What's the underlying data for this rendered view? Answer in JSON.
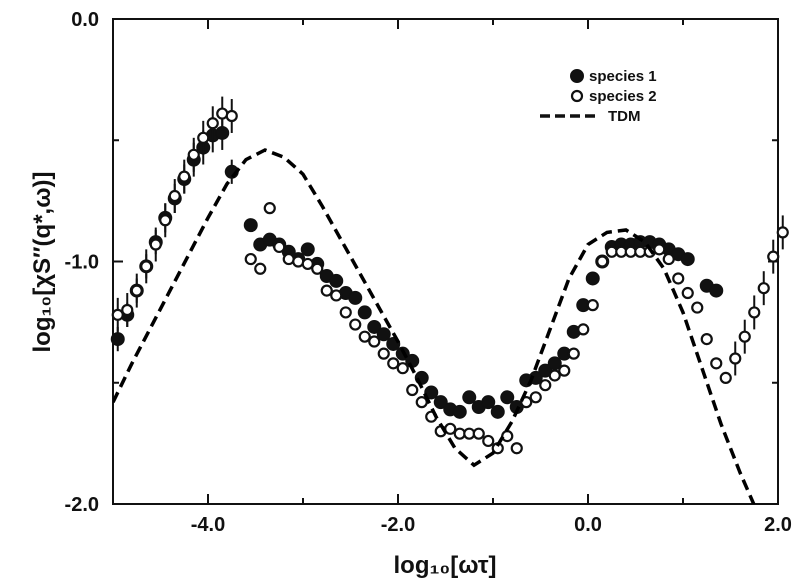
{
  "chart_data": {
    "type": "scatter",
    "title": "",
    "xlabel": "log₁₀[ωτ]",
    "ylabel": "log₁₀[χS″(q*,ω)]",
    "xlim": [
      -5.0,
      2.0
    ],
    "ylim": [
      -2.0,
      0.0
    ],
    "x_ticks": [
      -4.0,
      -2.0,
      0.0,
      2.0
    ],
    "x_tick_labels": [
      "-4.0",
      "-2.0",
      "0.0",
      "2.0"
    ],
    "y_ticks": [
      -2.0,
      -1.0,
      0.0
    ],
    "y_tick_labels": [
      "-2.0",
      "-1.0",
      "0.0"
    ],
    "grid": false,
    "legend_position": "top-right",
    "series": [
      {
        "name": "species 1",
        "marker": "filled-circle",
        "color": "#000000",
        "x": [
          -4.95,
          -4.85,
          -4.75,
          -4.65,
          -4.55,
          -4.45,
          -4.35,
          -4.25,
          -4.15,
          -4.05,
          -3.95,
          -3.85,
          -3.75,
          -3.55,
          -3.45,
          -3.35,
          -3.25,
          -3.15,
          -3.05,
          -2.95,
          -2.85,
          -2.75,
          -2.65,
          -2.55,
          -2.45,
          -2.35,
          -2.25,
          -2.15,
          -2.05,
          -1.95,
          -1.85,
          -1.75,
          -1.65,
          -1.55,
          -1.45,
          -1.35,
          -1.25,
          -1.15,
          -1.05,
          -0.95,
          -0.85,
          -0.75,
          -0.65,
          -0.55,
          -0.45,
          -0.35,
          -0.25,
          -0.15,
          -0.05,
          0.05,
          0.15,
          0.25,
          0.35,
          0.45,
          0.55,
          0.65,
          0.75,
          0.85,
          0.95,
          1.05,
          1.25,
          1.35
        ],
        "y": [
          -1.32,
          -1.22,
          -1.12,
          -1.02,
          -0.92,
          -0.82,
          -0.74,
          -0.66,
          -0.58,
          -0.53,
          -0.48,
          -0.47,
          -0.63,
          -0.85,
          -0.93,
          -0.91,
          -0.93,
          -0.96,
          -0.99,
          -0.95,
          -1.01,
          -1.06,
          -1.08,
          -1.13,
          -1.15,
          -1.21,
          -1.27,
          -1.3,
          -1.34,
          -1.38,
          -1.41,
          -1.48,
          -1.54,
          -1.58,
          -1.61,
          -1.62,
          -1.56,
          -1.6,
          -1.58,
          -1.62,
          -1.56,
          -1.6,
          -1.49,
          -1.48,
          -1.45,
          -1.42,
          -1.38,
          -1.29,
          -1.18,
          -1.07,
          -1.0,
          -0.94,
          -0.93,
          -0.93,
          -0.92,
          -0.92,
          -0.93,
          -0.95,
          -0.97,
          -0.99,
          -1.1,
          -1.12
        ],
        "y_err": [
          0.05,
          0.05,
          0.05,
          0.05,
          0.05,
          0.06,
          0.06,
          0.06,
          0.07,
          0.07,
          0.07,
          0.07,
          0.05,
          0,
          0,
          0,
          0,
          0,
          0,
          0,
          0,
          0,
          0,
          0,
          0,
          0,
          0,
          0,
          0,
          0,
          0,
          0,
          0,
          0,
          0,
          0,
          0,
          0,
          0,
          0,
          0,
          0,
          0,
          0,
          0,
          0,
          0,
          0,
          0,
          0,
          0,
          0,
          0,
          0,
          0,
          0,
          0,
          0,
          0,
          0,
          0,
          0
        ]
      },
      {
        "name": "species 2",
        "marker": "open-circle",
        "color": "#000000",
        "x": [
          -4.95,
          -4.85,
          -4.75,
          -4.65,
          -4.55,
          -4.45,
          -4.35,
          -4.25,
          -4.15,
          -4.05,
          -3.95,
          -3.85,
          -3.75,
          -3.55,
          -3.45,
          -3.35,
          -3.25,
          -3.15,
          -3.05,
          -2.95,
          -2.85,
          -2.75,
          -2.65,
          -2.55,
          -2.45,
          -2.35,
          -2.25,
          -2.15,
          -2.05,
          -1.95,
          -1.85,
          -1.75,
          -1.65,
          -1.55,
          -1.45,
          -1.35,
          -1.25,
          -1.15,
          -1.05,
          -0.95,
          -0.85,
          -0.75,
          -0.65,
          -0.55,
          -0.45,
          -0.35,
          -0.25,
          -0.15,
          -0.05,
          0.05,
          0.15,
          0.25,
          0.35,
          0.45,
          0.55,
          0.65,
          0.75,
          0.85,
          0.95,
          1.05,
          1.15,
          1.25,
          1.35,
          1.45,
          1.55,
          1.65,
          1.75,
          1.85,
          1.95,
          2.05
        ],
        "y": [
          -1.22,
          -1.2,
          -1.12,
          -1.02,
          -0.93,
          -0.83,
          -0.73,
          -0.65,
          -0.56,
          -0.49,
          -0.43,
          -0.39,
          -0.4,
          -0.99,
          -1.03,
          -0.78,
          -0.94,
          -0.99,
          -1.0,
          -1.01,
          -1.03,
          -1.12,
          -1.14,
          -1.21,
          -1.26,
          -1.31,
          -1.33,
          -1.38,
          -1.42,
          -1.44,
          -1.53,
          -1.58,
          -1.64,
          -1.7,
          -1.69,
          -1.71,
          -1.71,
          -1.71,
          -1.74,
          -1.77,
          -1.72,
          -1.77,
          -1.58,
          -1.56,
          -1.51,
          -1.47,
          -1.45,
          -1.38,
          -1.28,
          -1.18,
          -1.0,
          -0.96,
          -0.96,
          -0.96,
          -0.96,
          -0.96,
          -0.95,
          -0.99,
          -1.07,
          -1.13,
          -1.19,
          -1.32,
          -1.42,
          -1.48,
          -1.4,
          -1.31,
          -1.21,
          -1.11,
          -0.98,
          -0.88
        ],
        "y_err": [
          0.07,
          0.07,
          0.07,
          0.07,
          0.07,
          0.07,
          0.07,
          0.07,
          0.07,
          0.07,
          0.07,
          0.07,
          0.07,
          0,
          0,
          0,
          0,
          0,
          0,
          0,
          0,
          0,
          0,
          0,
          0,
          0,
          0,
          0,
          0,
          0,
          0,
          0,
          0,
          0,
          0,
          0,
          0,
          0,
          0,
          0,
          0,
          0,
          0,
          0,
          0,
          0,
          0,
          0,
          0,
          0,
          0,
          0,
          0,
          0,
          0,
          0,
          0,
          0,
          0,
          0,
          0,
          0,
          0,
          0,
          0.07,
          0.07,
          0.07,
          0.07,
          0.07,
          0.07
        ]
      },
      {
        "name": "TDM",
        "marker": "dashed-line",
        "color": "#000000",
        "x": [
          -5.0,
          -4.8,
          -4.6,
          -4.4,
          -4.2,
          -4.0,
          -3.8,
          -3.6,
          -3.4,
          -3.2,
          -3.0,
          -2.8,
          -2.6,
          -2.4,
          -2.2,
          -2.0,
          -1.8,
          -1.6,
          -1.4,
          -1.2,
          -1.0,
          -0.8,
          -0.6,
          -0.4,
          -0.2,
          0.0,
          0.2,
          0.4,
          0.6,
          0.8,
          1.0,
          1.2,
          1.4,
          1.6,
          1.8
        ],
        "y": [
          -1.58,
          -1.42,
          -1.27,
          -1.12,
          -0.97,
          -0.82,
          -0.68,
          -0.58,
          -0.54,
          -0.57,
          -0.64,
          -0.77,
          -0.91,
          -1.05,
          -1.19,
          -1.33,
          -1.48,
          -1.64,
          -1.77,
          -1.84,
          -1.79,
          -1.66,
          -1.49,
          -1.28,
          -1.07,
          -0.93,
          -0.88,
          -0.87,
          -0.92,
          -1.03,
          -1.21,
          -1.44,
          -1.67,
          -1.87,
          -2.05
        ]
      }
    ]
  }
}
